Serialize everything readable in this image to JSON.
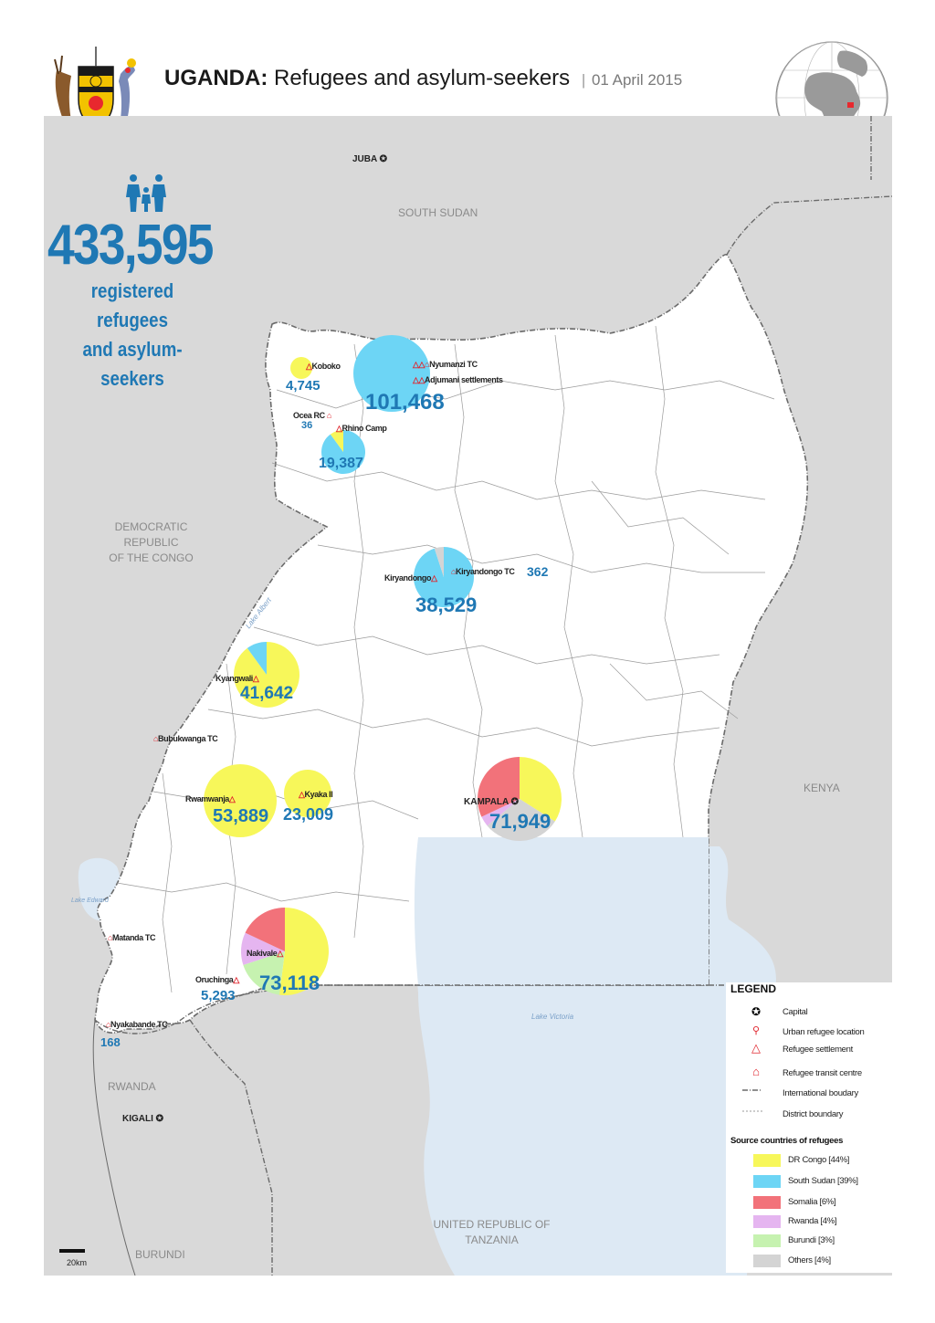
{
  "header": {
    "country": "UGANDA:",
    "subtitle": "Refugees and asylum-seekers",
    "separator": "|",
    "date": "01 April 2015"
  },
  "summary": {
    "total": "433,595",
    "line1": "registered refugees",
    "line2": "and asylum-seekers"
  },
  "countries": {
    "south_sudan": "SOUTH SUDAN",
    "drc_1": "DEMOCRATIC",
    "drc_2": "REPUBLIC",
    "drc_3": "OF THE CONGO",
    "kenya": "KENYA",
    "rwanda": "RWANDA",
    "tanzania_1": "UNITED REPUBLIC OF",
    "tanzania_2": "TANZANIA",
    "burundi": "BURUNDI"
  },
  "capitals": {
    "juba": "JUBA",
    "kigali": "KIGALI",
    "kampala": "KAMPALA"
  },
  "water": {
    "lake_albert": "Lake Albert",
    "lake_edward": "Lake Edward",
    "lake_victoria": "Lake Victoria"
  },
  "sites": [
    {
      "id": "koboko",
      "name": "Koboko",
      "value": "4,745"
    },
    {
      "id": "adjumani",
      "name": "Adjumani settlements",
      "value": "101,468"
    },
    {
      "id": "nyumanzi",
      "name": "Nyumanzi TC",
      "value": ""
    },
    {
      "id": "ocea",
      "name": "Ocea RC",
      "value": "36"
    },
    {
      "id": "rhino",
      "name": "Rhino Camp",
      "value": "19,387"
    },
    {
      "id": "kiryandongo",
      "name": "Kiryandongo",
      "value": "38,529"
    },
    {
      "id": "kiryandongo_tc",
      "name": "Kiryandongo TC",
      "value": "362"
    },
    {
      "id": "kyangwali",
      "name": "Kyangwali",
      "value": "41,642"
    },
    {
      "id": "bubukwanga",
      "name": "Bubukwanga TC",
      "value": ""
    },
    {
      "id": "rwamwanja",
      "name": "Rwamwanja",
      "value": "53,889"
    },
    {
      "id": "kyaka",
      "name": "Kyaka II",
      "value": "23,009"
    },
    {
      "id": "kampala",
      "name": "KAMPALA",
      "value": "71,949"
    },
    {
      "id": "matanda",
      "name": "Matanda TC",
      "value": ""
    },
    {
      "id": "nakivale",
      "name": "Nakivale",
      "value": "73,118"
    },
    {
      "id": "oruchinga",
      "name": "Oruchinga",
      "value": "5,293"
    },
    {
      "id": "nyakabande",
      "name": "Nyakabande TC",
      "value": "168"
    }
  ],
  "legend": {
    "title": "LEGEND",
    "items": [
      "Capital",
      "Urban refugee location",
      "Refugee settlement",
      "Refugee transit centre",
      "International boudary",
      "District boundary"
    ],
    "source_title": "Source countries of refugees",
    "sources": [
      {
        "label": "DR Congo [44%]",
        "color": "#f7f75a"
      },
      {
        "label": "South Sudan [39%]",
        "color": "#6dd5f5"
      },
      {
        "label": "Somalia [6%]",
        "color": "#f2727a"
      },
      {
        "label": "Rwanda [4%]",
        "color": "#e5b5f0"
      },
      {
        "label": "Burundi [3%]",
        "color": "#c6f2b0"
      },
      {
        "label": "Others [4%]",
        "color": "#d4d4d4"
      }
    ]
  },
  "scale": {
    "label": "20km"
  },
  "colors": {
    "accent": "#1f78b4",
    "land_outside": "#d9d9d9",
    "uganda": "#ffffff",
    "water": "#dde9f4",
    "settlement": "#e0262e"
  }
}
